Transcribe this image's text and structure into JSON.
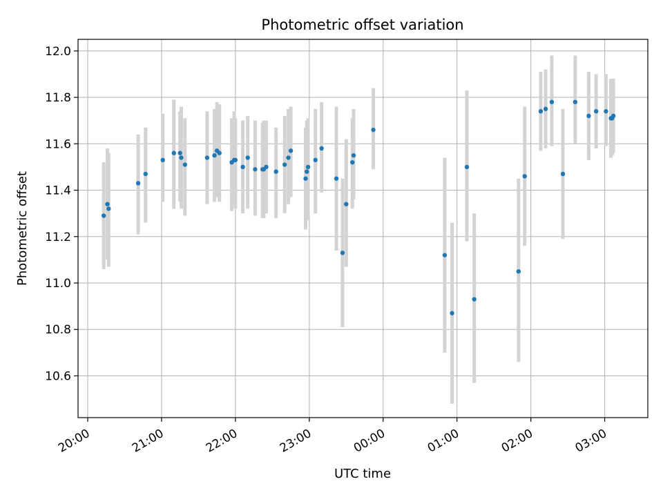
{
  "chart_data": {
    "type": "scatter",
    "title": "Photometric offset variation",
    "xlabel": "UTC time",
    "ylabel": "Photometric offset",
    "grid": true,
    "x_ticks": [
      "20:00",
      "21:00",
      "22:00",
      "23:00",
      "00:00",
      "01:00",
      "02:00",
      "03:00"
    ],
    "y_ticks": [
      "10.6",
      "10.8",
      "11.0",
      "11.2",
      "11.4",
      "11.6",
      "11.8",
      "12.0"
    ],
    "xlim": [
      "20:00",
      "03:35"
    ],
    "ylim": [
      10.42,
      12.05
    ],
    "x_tick_labels_rotated": true,
    "colors": {
      "point": "#1f77b4",
      "errorbar": "#d3d3d3",
      "grid": "#b0b0b0"
    },
    "points": [
      {
        "t": "20:13",
        "y": 11.29,
        "lo": 11.06,
        "hi": 11.52
      },
      {
        "t": "20:16",
        "y": 11.34,
        "lo": 11.1,
        "hi": 11.58
      },
      {
        "t": "20:17",
        "y": 11.32,
        "lo": 11.07,
        "hi": 11.56
      },
      {
        "t": "20:41",
        "y": 11.43,
        "lo": 11.21,
        "hi": 11.64
      },
      {
        "t": "20:47",
        "y": 11.47,
        "lo": 11.26,
        "hi": 11.67
      },
      {
        "t": "21:01",
        "y": 11.53,
        "lo": 11.35,
        "hi": 11.73
      },
      {
        "t": "21:10",
        "y": 11.56,
        "lo": 11.32,
        "hi": 11.79
      },
      {
        "t": "21:15",
        "y": 11.56,
        "lo": 11.35,
        "hi": 11.74
      },
      {
        "t": "21:16",
        "y": 11.54,
        "lo": 11.32,
        "hi": 11.76
      },
      {
        "t": "21:19",
        "y": 11.51,
        "lo": 11.29,
        "hi": 11.71
      },
      {
        "t": "21:37",
        "y": 11.54,
        "lo": 11.34,
        "hi": 11.74
      },
      {
        "t": "21:43",
        "y": 11.55,
        "lo": 11.35,
        "hi": 11.75
      },
      {
        "t": "21:45",
        "y": 11.57,
        "lo": 11.37,
        "hi": 11.78
      },
      {
        "t": "21:47",
        "y": 11.56,
        "lo": 11.35,
        "hi": 11.77
      },
      {
        "t": "21:57",
        "y": 11.52,
        "lo": 11.31,
        "hi": 11.71
      },
      {
        "t": "21:59",
        "y": 11.53,
        "lo": 11.33,
        "hi": 11.74
      },
      {
        "t": "22:00",
        "y": 11.53,
        "lo": 11.32,
        "hi": 11.71
      },
      {
        "t": "22:06",
        "y": 11.5,
        "lo": 11.3,
        "hi": 11.7
      },
      {
        "t": "22:10",
        "y": 11.54,
        "lo": 11.32,
        "hi": 11.72
      },
      {
        "t": "22:16",
        "y": 11.49,
        "lo": 11.29,
        "hi": 11.7
      },
      {
        "t": "22:22",
        "y": 11.49,
        "lo": 11.28,
        "hi": 11.69
      },
      {
        "t": "22:23",
        "y": 11.49,
        "lo": 11.28,
        "hi": 11.7
      },
      {
        "t": "22:25",
        "y": 11.5,
        "lo": 11.3,
        "hi": 11.7
      },
      {
        "t": "22:33",
        "y": 11.48,
        "lo": 11.28,
        "hi": 11.67
      },
      {
        "t": "22:40",
        "y": 11.51,
        "lo": 11.3,
        "hi": 11.72
      },
      {
        "t": "22:43",
        "y": 11.54,
        "lo": 11.34,
        "hi": 11.75
      },
      {
        "t": "22:45",
        "y": 11.57,
        "lo": 11.37,
        "hi": 11.76
      },
      {
        "t": "22:57",
        "y": 11.45,
        "lo": 11.23,
        "hi": 11.67
      },
      {
        "t": "22:58",
        "y": 11.48,
        "lo": 11.27,
        "hi": 11.7
      },
      {
        "t": "22:59",
        "y": 11.5,
        "lo": 11.29,
        "hi": 11.71
      },
      {
        "t": "23:05",
        "y": 11.53,
        "lo": 11.3,
        "hi": 11.75
      },
      {
        "t": "23:10",
        "y": 11.58,
        "lo": 11.39,
        "hi": 11.78
      },
      {
        "t": "23:22",
        "y": 11.45,
        "lo": 11.14,
        "hi": 11.76
      },
      {
        "t": "23:27",
        "y": 11.13,
        "lo": 10.81,
        "hi": 11.45
      },
      {
        "t": "23:30",
        "y": 11.34,
        "lo": 11.07,
        "hi": 11.62
      },
      {
        "t": "23:35",
        "y": 11.52,
        "lo": 11.32,
        "hi": 11.71
      },
      {
        "t": "23:36",
        "y": 11.55,
        "lo": 11.36,
        "hi": 11.75
      },
      {
        "t": "23:52",
        "y": 11.66,
        "lo": 11.49,
        "hi": 11.84
      },
      {
        "t": "00:50",
        "y": 11.12,
        "lo": 10.7,
        "hi": 11.54
      },
      {
        "t": "00:56",
        "y": 10.87,
        "lo": 10.48,
        "hi": 11.26
      },
      {
        "t": "01:08",
        "y": 11.5,
        "lo": 11.18,
        "hi": 11.83
      },
      {
        "t": "01:14",
        "y": 10.93,
        "lo": 10.57,
        "hi": 11.3
      },
      {
        "t": "01:50",
        "y": 11.05,
        "lo": 10.66,
        "hi": 11.45
      },
      {
        "t": "01:55",
        "y": 11.46,
        "lo": 11.16,
        "hi": 11.76
      },
      {
        "t": "02:08",
        "y": 11.74,
        "lo": 11.57,
        "hi": 11.91
      },
      {
        "t": "02:12",
        "y": 11.75,
        "lo": 11.58,
        "hi": 11.92
      },
      {
        "t": "02:17",
        "y": 11.78,
        "lo": 11.59,
        "hi": 11.98
      },
      {
        "t": "02:26",
        "y": 11.47,
        "lo": 11.19,
        "hi": 11.75
      },
      {
        "t": "02:36",
        "y": 11.78,
        "lo": 11.6,
        "hi": 11.98
      },
      {
        "t": "02:47",
        "y": 11.72,
        "lo": 11.53,
        "hi": 11.91
      },
      {
        "t": "02:53",
        "y": 11.74,
        "lo": 11.58,
        "hi": 11.9
      },
      {
        "t": "03:01",
        "y": 11.74,
        "lo": 11.59,
        "hi": 11.9
      },
      {
        "t": "03:05",
        "y": 11.71,
        "lo": 11.54,
        "hi": 11.88
      },
      {
        "t": "03:06",
        "y": 11.71,
        "lo": 11.55,
        "hi": 11.88
      },
      {
        "t": "03:07",
        "y": 11.72,
        "lo": 11.56,
        "hi": 11.88
      }
    ]
  }
}
